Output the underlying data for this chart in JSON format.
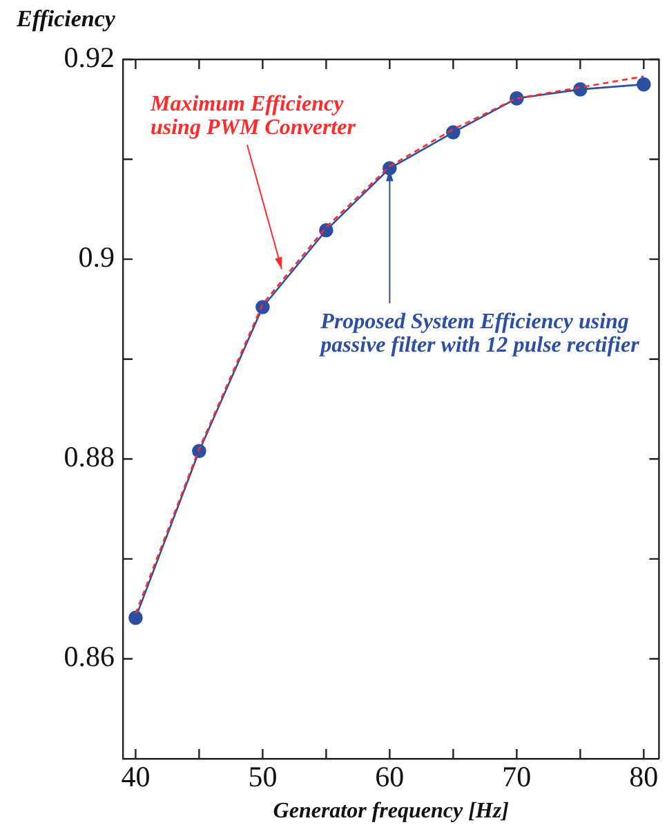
{
  "chart_data": {
    "type": "line",
    "xlabel": "Generator frequency [Hz]",
    "ylabel": "Efficiency",
    "x": [
      40,
      45,
      50,
      55,
      60,
      65,
      70,
      75,
      80
    ],
    "series": [
      {
        "color": "#ff2a2a",
        "marker": "none",
        "line_style": "dashed",
        "values": [
          0.8645,
          0.881,
          0.8955,
          0.9032,
          0.9093,
          0.913,
          0.9161,
          0.9172,
          0.9183
        ]
      },
      {
        "color": "#2d4fa3",
        "marker": "circle",
        "line_style": "solid",
        "values": [
          0.8641,
          0.8808,
          0.8952,
          0.9029,
          0.9091,
          0.9127,
          0.9161,
          0.917,
          0.9175
        ]
      }
    ],
    "xlim": [
      39,
      81.2
    ],
    "xticks": [
      40,
      {
        "value": 45,
        "label": null
      },
      50,
      {
        "value": 55,
        "label": null
      },
      60,
      {
        "value": 65,
        "label": null
      },
      70,
      {
        "value": 75,
        "label": null
      },
      80
    ],
    "ylim": [
      0.85,
      0.92
    ],
    "yticks": [
      0.86,
      {
        "value": 0.87,
        "label": null
      },
      0.88,
      {
        "value": 0.89,
        "label": null
      },
      0.9,
      {
        "value": 0.91,
        "label": null
      },
      0.92
    ],
    "grid": false,
    "legend": false,
    "annotations": [
      {
        "text": "Maximum Efficiency using PWM Converter",
        "x": 51.5,
        "y": 0.899
      },
      {
        "text": "Proposed System Efficiency using passive filter with 12 pulse rectifier",
        "x": 60,
        "y": 0.909
      }
    ]
  }
}
